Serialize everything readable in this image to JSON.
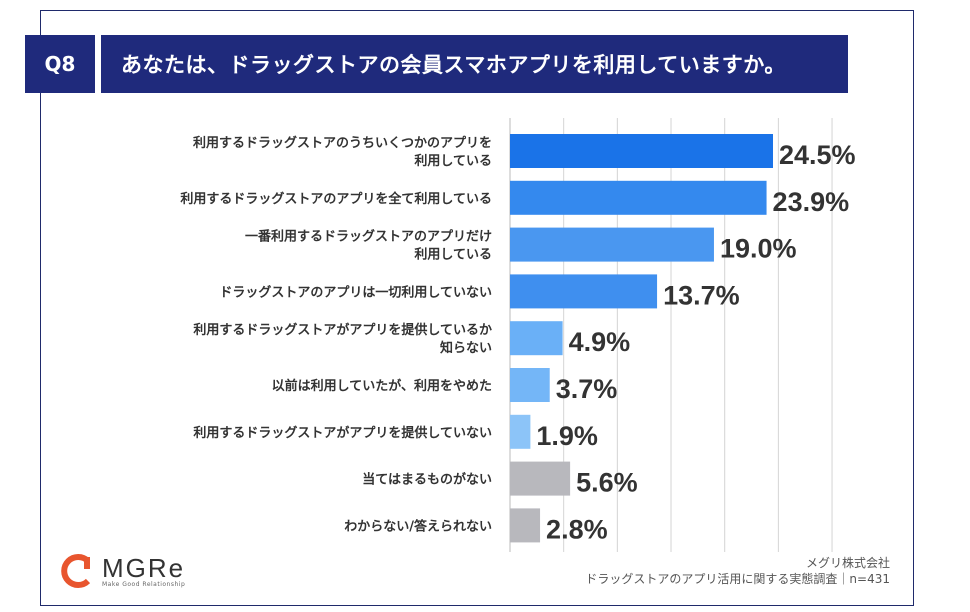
{
  "header": {
    "q_label": "Q8",
    "title": "あなたは、ドラッグストアの会員スマホアプリを利用していますか。"
  },
  "chart_data": {
    "type": "bar",
    "orientation": "horizontal",
    "title": "あなたは、ドラッグストアの会員スマホアプリを利用していますか。",
    "categories": [
      [
        "利用するドラッグストアのうちいくつかのアプリを",
        "利用している"
      ],
      [
        "利用するドラッグストアのアプリを全て利用している"
      ],
      [
        "一番利用するドラッグストアのアプリだけ",
        "利用している"
      ],
      [
        "ドラッグストアのアプリは一切利用していない"
      ],
      [
        "利用するドラッグストアがアプリを提供しているか",
        "知らない"
      ],
      [
        "以前は利用していたが、利用をやめた"
      ],
      [
        "利用するドラッグストアがアプリを提供していない"
      ],
      [
        "当てはまるものがない"
      ],
      [
        "わからない/答えられない"
      ]
    ],
    "values": [
      24.5,
      23.9,
      19.0,
      13.7,
      4.9,
      3.7,
      1.9,
      5.6,
      2.8
    ],
    "labels": [
      "24.5%",
      "23.9%",
      "19.0%",
      "13.7%",
      "4.9%",
      "3.7%",
      "1.9%",
      "5.6%",
      "2.8%"
    ],
    "colors": [
      "#1a73e8",
      "#3489ee",
      "#4a97f0",
      "#3f8fef",
      "#6ab0f7",
      "#74b6f7",
      "#8cc4f8",
      "#b8b8bd",
      "#b8b8bd"
    ],
    "xlim": [
      0,
      30
    ],
    "grid": true
  },
  "footer": {
    "company": "メグリ株式会社",
    "source": "ドラッグストアのアプリ活用に関する実態調査｜n=431"
  },
  "logo": {
    "word": "MGRe",
    "tagline": "Make Good Relationship",
    "accent": "#e8552e"
  }
}
